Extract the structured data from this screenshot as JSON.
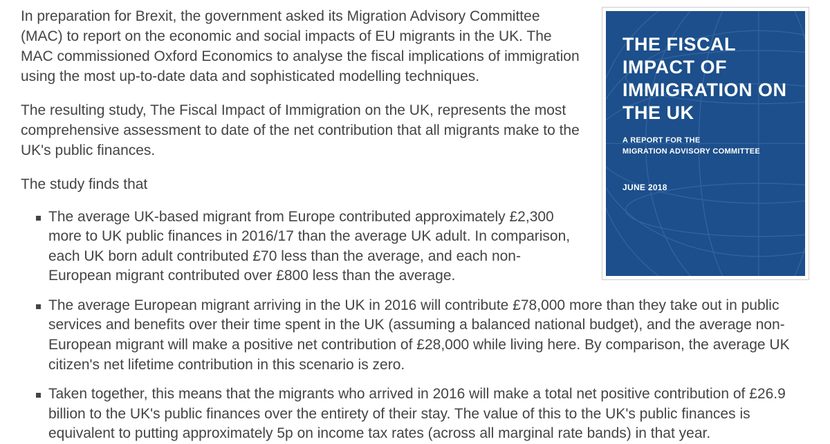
{
  "para1": "In preparation for Brexit, the government asked its Migration Advisory Committee (MAC) to report on the economic and social impacts of EU migrants in the UK. The MAC commissioned Oxford Economics to analyse the fiscal implications of immigration using the most up-to-date data and sophisticated modelling techniques.",
  "para2": "The resulting study, The Fiscal Impact of Immigration on the UK, represents the most comprehensive assessment to date of the net contribution that all migrants make to the UK's public finances.",
  "para3": "The study finds that",
  "bullets": [
    "The average UK-based migrant from Europe contributed approximately £2,300 more to UK public finances in 2016/17 than the average UK adult. In comparison, each UK born adult contributed £70 less than the average, and each non-European migrant contributed over £800 less than the average.",
    "The average European migrant arriving in the UK in 2016 will contribute £78,000 more than they take out in public services and benefits over their time spent in the UK (assuming a balanced national budget), and the average non-European migrant will make a positive net contribution of £28,000 while living here. By comparison, the average UK citizen's net lifetime contribution in this scenario is zero.",
    "Taken together, this means that the migrants who arrived in 2016 will make a total net positive contribution of £26.9 billion to the UK's public finances over the entirety of their stay. The value of this to the UK's public finances is equivalent to putting approximately 5p on income tax rates (across all marginal rate bands) in that year."
  ],
  "report": {
    "title": "THE FISCAL IMPACT OF IMMIGRATION ON THE UK",
    "subtitle": "A REPORT FOR THE\nMIGRATION ADVISORY COMMITTEE",
    "date": "JUNE 2018",
    "bg_color": "#1c4f8b",
    "line_color": "#3a6ea5"
  },
  "colors": {
    "text": "#444444",
    "bullet": "#444444",
    "card_border": "#cccccc",
    "page_bg": "#ffffff"
  }
}
